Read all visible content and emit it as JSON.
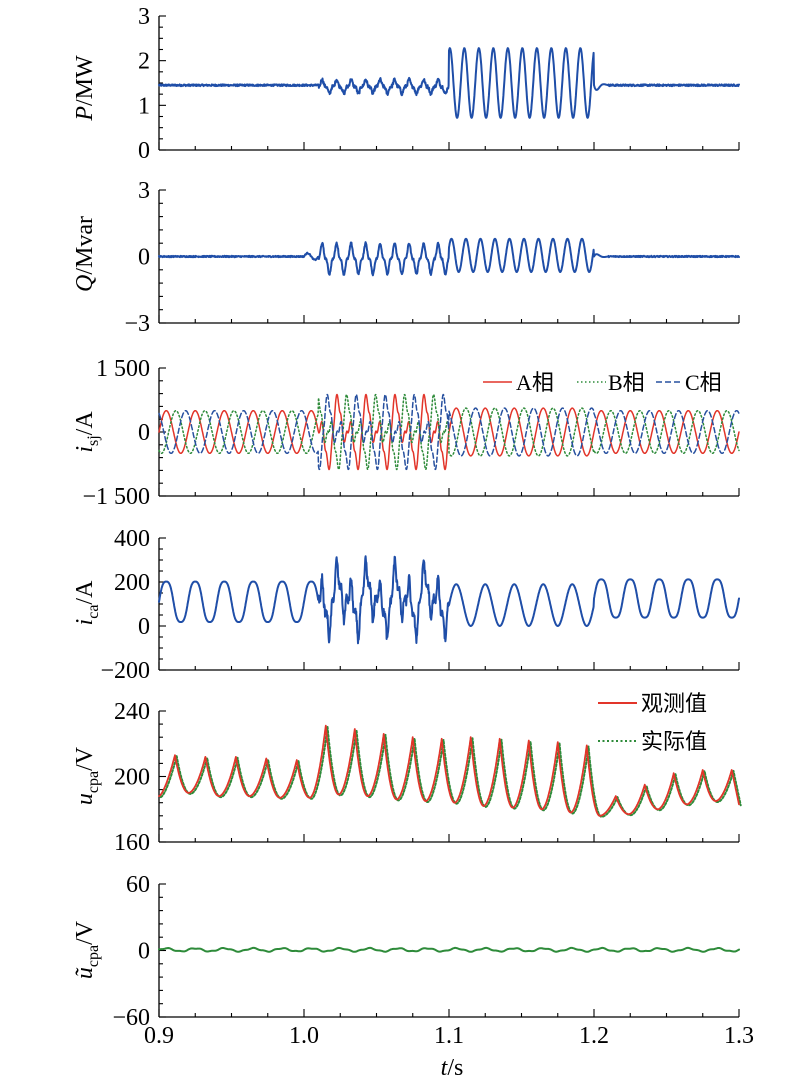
{
  "xaxis": {
    "range": [
      0.9,
      1.3
    ],
    "ticks": [
      "0.9",
      "1.0",
      "1.1",
      "1.2",
      "1.3"
    ],
    "label_var": "t",
    "label_unit": "/s"
  },
  "colors": {
    "blue": "#1f4ea8",
    "red": "#e2352a",
    "green": "#2e8b3a",
    "dash_blue": "#27509f"
  },
  "chart_data": [
    {
      "type": "line",
      "ylabel_var": "P",
      "ylabel_unit": "/MW",
      "ylim": [
        0,
        3
      ],
      "yticks": [
        "0",
        "1",
        "2",
        "3"
      ],
      "series": [
        {
          "x": [
            0.9,
            1.0,
            1.01,
            1.1,
            1.101,
            1.2,
            1.21,
            1.3
          ],
          "values": [
            1.45,
            1.45,
            1.4,
            1.45,
            1.45,
            1.45,
            1.45,
            1.45
          ],
          "segments": [
            {
              "x": [
                0.9,
                1.01
              ],
              "base": 1.45,
              "amp": 0.02
            },
            {
              "x": [
                1.01,
                1.1
              ],
              "base": 1.45,
              "amp": 0.16,
              "freq": 100
            },
            {
              "x": [
                1.1,
                1.2
              ],
              "base": 1.5,
              "amp": 0.8,
              "freq": 100
            },
            {
              "x": [
                1.2,
                1.3
              ],
              "base": 1.45,
              "amp": 0.02
            }
          ]
        }
      ]
    },
    {
      "type": "line",
      "ylabel_var": "Q",
      "ylabel_unit": "/Mvar",
      "ylim": [
        -3,
        3
      ],
      "yticks": [
        "−3",
        "0",
        "3"
      ],
      "series": [
        {
          "segments": [
            {
              "x": [
                0.9,
                1.01
              ],
              "base": 0,
              "amp": 0.03
            },
            {
              "x": [
                1.01,
                1.1
              ],
              "base": -0.1,
              "amp": 0.6,
              "freq": 100
            },
            {
              "x": [
                1.1,
                1.2
              ],
              "base": 0.05,
              "amp": 0.7,
              "freq": 100
            },
            {
              "x": [
                1.2,
                1.3
              ],
              "base": 0,
              "amp": 0.03
            }
          ]
        }
      ]
    },
    {
      "type": "line",
      "ylabel_var": "i",
      "ylabel_sub": "sj",
      "ylabel_unit": "/A",
      "ylim": [
        -1500,
        1500
      ],
      "yticks": [
        "−1 500",
        "0",
        "1 500"
      ],
      "legend": [
        "A相",
        "B相",
        "C相"
      ],
      "series": [
        {
          "name": "A相",
          "amp_normal": 500,
          "amp_fault": 1000,
          "phase": 0
        },
        {
          "name": "B相",
          "amp_normal": 500,
          "amp_fault": 1000,
          "phase": -2.094
        },
        {
          "name": "C相",
          "amp_normal": 500,
          "amp_fault": 1000,
          "phase": 2.094
        }
      ]
    },
    {
      "type": "line",
      "ylabel_var": "i",
      "ylabel_sub": "ca",
      "ylabel_unit": "/A",
      "ylim": [
        -200,
        400
      ],
      "yticks": [
        "−200",
        "0",
        "200",
        "400"
      ],
      "series": [
        {
          "base": 110,
          "amp_normal": 100,
          "amp_fault": 150
        }
      ]
    },
    {
      "type": "line",
      "ylabel_var": "u",
      "ylabel_sub": "cpa",
      "ylabel_unit": "/V",
      "ylim": [
        160,
        240
      ],
      "yticks": [
        "160",
        "200",
        "240"
      ],
      "legend": [
        "观测值",
        "实际值"
      ],
      "series": [
        {
          "name": "观测值"
        },
        {
          "name": "实际值"
        }
      ],
      "peaks_x": [
        0.911,
        0.932,
        0.953,
        0.974,
        0.995,
        1.015,
        1.035,
        1.055,
        1.075,
        1.095,
        1.115,
        1.135,
        1.155,
        1.175,
        1.195,
        1.215,
        1.235,
        1.255,
        1.275,
        1.295
      ],
      "peaks_y": [
        213,
        212,
        212,
        211,
        210,
        231,
        229,
        226,
        224,
        223,
        224,
        223,
        222,
        221,
        219,
        188,
        195,
        202,
        204,
        204
      ],
      "troughs_y": [
        190,
        188,
        188,
        187,
        187,
        189,
        188,
        186,
        185,
        184,
        182,
        181,
        180,
        178,
        176,
        177,
        180,
        183,
        185,
        186
      ]
    },
    {
      "type": "line",
      "ylabel_var": "ũ",
      "ylabel_sub": "cpa",
      "ylabel_unit": "/V",
      "ylim": [
        -60,
        60
      ],
      "yticks": [
        "−60",
        "0",
        "60"
      ],
      "series": [
        {
          "base": 0.5,
          "amp": 1.5
        }
      ]
    }
  ]
}
